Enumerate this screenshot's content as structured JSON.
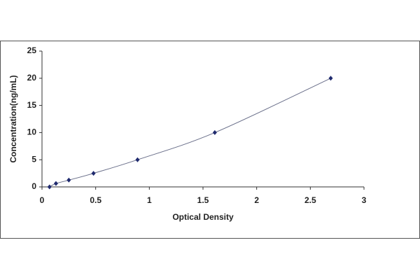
{
  "chart_data": {
    "type": "scatter",
    "xlabel": "Optical Density",
    "ylabel": "Concentration(ng/mL)",
    "x": [
      0.07,
      0.13,
      0.25,
      0.48,
      0.89,
      1.61,
      2.69
    ],
    "series": [
      {
        "color": "#1f2a6e",
        "values": [
          0,
          0.625,
          1.25,
          2.5,
          5,
          10,
          20
        ]
      }
    ],
    "xlim": [
      0,
      3
    ],
    "xticks": [
      0,
      0.5,
      1,
      1.5,
      2,
      2.5,
      3
    ],
    "ylim": [
      0,
      25
    ],
    "yticks": [
      0,
      5,
      10,
      15,
      20,
      25
    ],
    "grid": false,
    "trendline": true
  }
}
